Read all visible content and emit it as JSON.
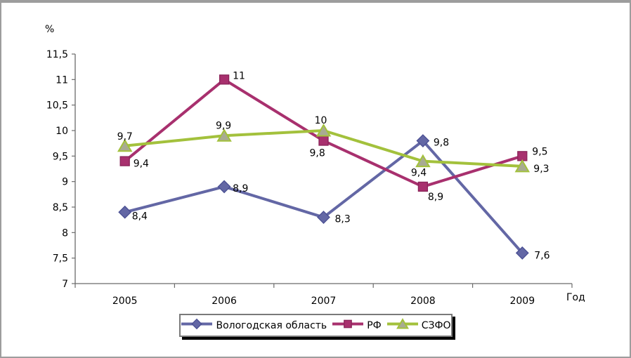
{
  "chart": {
    "y_axis_title": "%",
    "x_axis_title": "Год",
    "axis_color": "#6b6b6b",
    "text_color": "#000000",
    "background": "#ffffff"
  },
  "chart_data": {
    "type": "line",
    "title": "",
    "categories": [
      "2005",
      "2006",
      "2007",
      "2008",
      "2009"
    ],
    "xlabel": "Год",
    "ylabel": "%",
    "ylim": [
      7,
      11.5
    ],
    "ytick_step": 0.5,
    "ytick_labels": [
      "7",
      "7,5",
      "8",
      "8,5",
      "9",
      "9,5",
      "10",
      "10,5",
      "11",
      "11,5"
    ],
    "grid": false,
    "legend_position": "bottom",
    "decimal_separator": ",",
    "series": [
      {
        "name": "Вологодская область",
        "marker": "diamond",
        "color": "#6367A5",
        "marker_fill": "#6367A5",
        "marker_stroke": "#4A4F93",
        "values": [
          8.4,
          8.9,
          8.3,
          9.8,
          7.6
        ],
        "point_labels": [
          "8,4",
          "8,9",
          "8,3",
          "9,8",
          "7,6"
        ]
      },
      {
        "name": "РФ",
        "marker": "square",
        "color": "#A8306E",
        "marker_fill": "#A8306E",
        "marker_stroke": "#8A2459",
        "values": [
          9.4,
          11,
          9.8,
          8.9,
          9.5
        ],
        "point_labels": [
          "9,4",
          "11",
          "9,8",
          "8,9",
          "9,5"
        ]
      },
      {
        "name": "СЗФО",
        "marker": "triangle",
        "color": "#A3C13C",
        "marker_fill": "#A8AB92",
        "marker_stroke": "#A3C13C",
        "values": [
          9.7,
          9.9,
          10,
          9.4,
          9.3
        ],
        "point_labels": [
          "9,7",
          "9,9",
          "10",
          "9,4",
          "9,3"
        ]
      }
    ],
    "label_offsets": [
      [
        [
          10,
          10,
          "s"
        ],
        [
          12,
          7,
          "s"
        ],
        [
          16,
          7,
          "s"
        ],
        [
          15,
          7,
          "s"
        ],
        [
          17,
          8,
          "s"
        ]
      ],
      [
        [
          12,
          8,
          "s"
        ],
        [
          12,
          -1,
          "s"
        ],
        [
          -20,
          22,
          "s"
        ],
        [
          7,
          19,
          "s"
        ],
        [
          14,
          -2,
          "s"
        ]
      ],
      [
        [
          0,
          -9,
          "m"
        ],
        [
          -1,
          -10,
          "m"
        ],
        [
          -4,
          -10,
          "m"
        ],
        [
          -17,
          21,
          "s"
        ],
        [
          16,
          8,
          "s"
        ]
      ]
    ]
  }
}
